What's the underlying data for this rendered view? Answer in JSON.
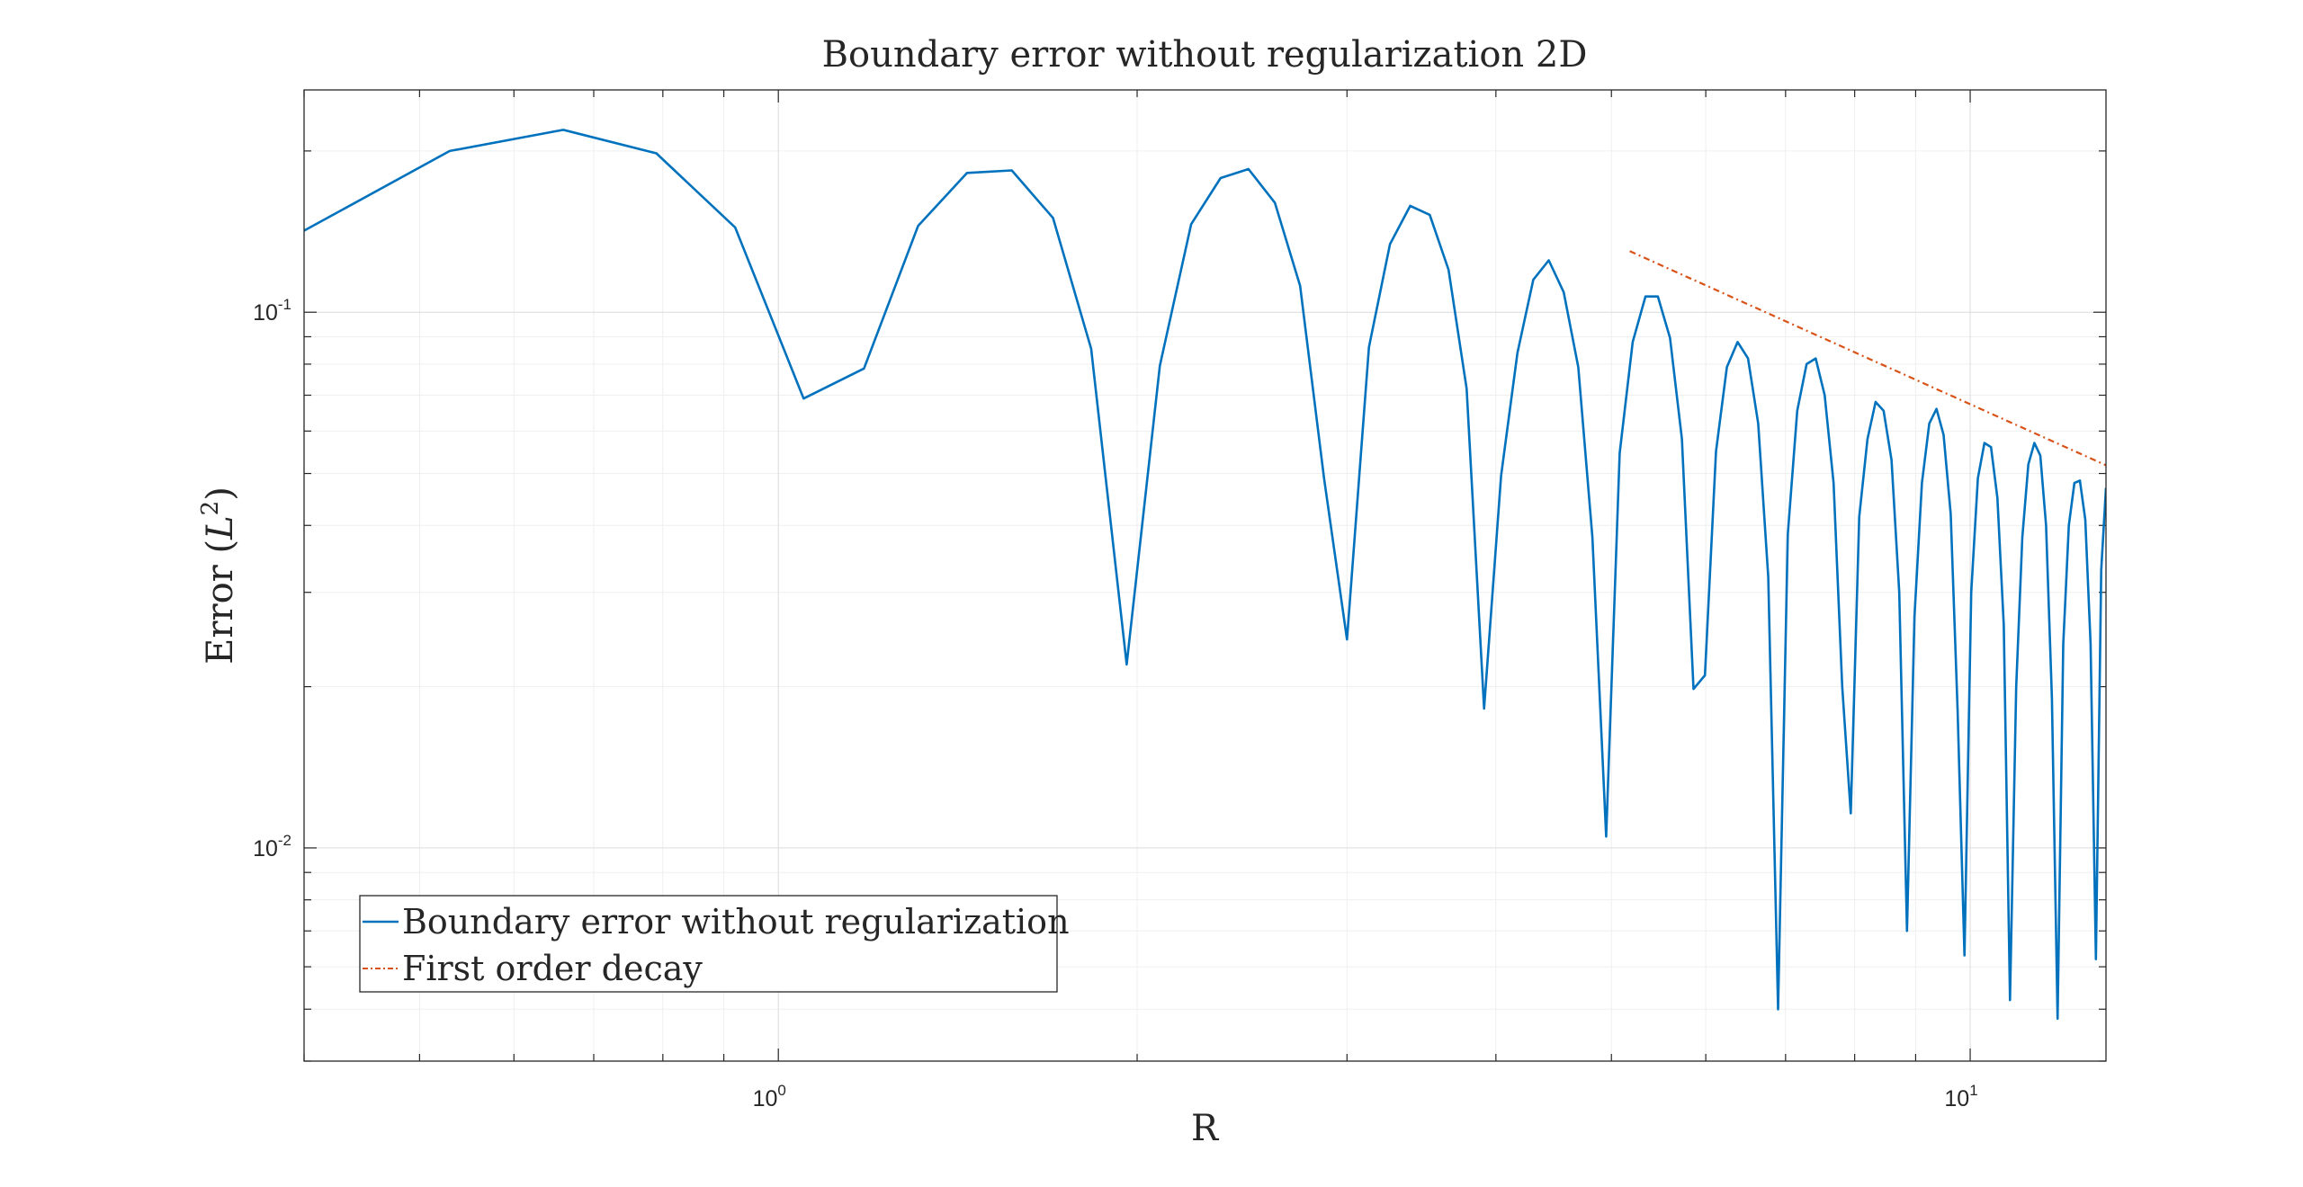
{
  "chart_data": {
    "type": "line",
    "title": "Boundary error without regularization 2D",
    "xlabel": "R",
    "ylabel_main": "Error (",
    "ylabel_italic": "L",
    "ylabel_sup": "2",
    "ylabel_close": ")",
    "xscale": "log",
    "yscale": "log",
    "xlim": [
      0.4,
      13
    ],
    "ylim": [
      0.004,
      0.26
    ],
    "grid": true,
    "legend_position": "bottom-left",
    "x_ticks": [
      {
        "base": "10",
        "exp": "0",
        "value": 1
      },
      {
        "base": "10",
        "exp": "1",
        "value": 10
      }
    ],
    "y_ticks": [
      {
        "base": "10",
        "exp": "-2",
        "value": 0.01
      },
      {
        "base": "10",
        "exp": "-1",
        "value": 0.1
      }
    ],
    "series": [
      {
        "name": "Boundary error without regularization",
        "color": "#0072BD",
        "style": "solid",
        "x": [
          0.4,
          0.53,
          0.66,
          0.79,
          0.92,
          1.05,
          1.18,
          1.31,
          1.44,
          1.57,
          1.7,
          1.83,
          1.96,
          2.09,
          2.22,
          2.35,
          2.48,
          2.61,
          2.74,
          2.87,
          3.0,
          3.13,
          3.26,
          3.39,
          3.52,
          3.65,
          3.78,
          3.91,
          4.04,
          4.17,
          4.3,
          4.43,
          4.56,
          4.69,
          4.82,
          4.95,
          5.08,
          5.21,
          5.34,
          5.47,
          5.6,
          5.73,
          5.86,
          5.99,
          6.12,
          6.25,
          6.38,
          6.51,
          6.64,
          6.77,
          6.9,
          7.03,
          7.16,
          7.29,
          7.42,
          7.55,
          7.68,
          7.81,
          7.94,
          8.07,
          8.2,
          8.33,
          8.46,
          8.59,
          8.72,
          8.85,
          8.98,
          9.11,
          9.24,
          9.37,
          9.5,
          9.63,
          9.76,
          9.89,
          10.02,
          10.15,
          10.28,
          10.41,
          10.54,
          10.67,
          10.8,
          10.93,
          11.06,
          11.19,
          11.32,
          11.45,
          11.58,
          11.71,
          11.84,
          11.97,
          12.1,
          12.23,
          12.36,
          12.49,
          12.62,
          12.75,
          12.88,
          13.0
        ],
        "y": [
          0.142,
          0.2,
          0.219,
          0.198,
          0.144,
          0.069,
          0.0785,
          0.145,
          0.182,
          0.184,
          0.15,
          0.0855,
          0.022,
          0.0795,
          0.146,
          0.178,
          0.185,
          0.16,
          0.112,
          0.049,
          0.0245,
          0.086,
          0.134,
          0.158,
          0.152,
          0.12,
          0.072,
          0.0182,
          0.0495,
          0.084,
          0.115,
          0.125,
          0.109,
          0.079,
          0.038,
          0.0105,
          0.0545,
          0.088,
          0.107,
          0.107,
          0.0895,
          0.058,
          0.0198,
          0.021,
          0.055,
          0.079,
          0.088,
          0.082,
          0.062,
          0.032,
          0.005,
          0.0385,
          0.0655,
          0.08,
          0.082,
          0.07,
          0.048,
          0.02,
          0.0116,
          0.0415,
          0.058,
          0.068,
          0.0655,
          0.053,
          0.03,
          0.007,
          0.027,
          0.048,
          0.062,
          0.066,
          0.059,
          0.042,
          0.018,
          0.0063,
          0.03,
          0.049,
          0.057,
          0.056,
          0.045,
          0.026,
          0.0052,
          0.02,
          0.038,
          0.052,
          0.057,
          0.054,
          0.04,
          0.019,
          0.0048,
          0.024,
          0.04,
          0.048,
          0.0485,
          0.041,
          0.024,
          0.0062,
          0.033,
          0.047
        ]
      },
      {
        "name": "First order decay",
        "color": "#D95319",
        "style": "dashdot",
        "x": [
          5.18,
          13.0
        ],
        "y": [
          0.13,
          0.0518
        ]
      }
    ]
  }
}
